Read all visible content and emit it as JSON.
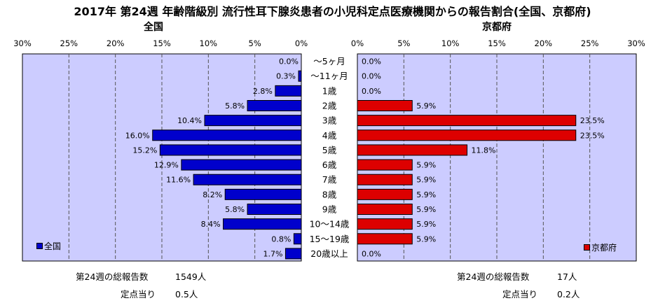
{
  "title": "2017年 第24週 年齢階級別 流行性耳下腺炎患者の小児科定点医療機関からの報告割合(全国、京都府)",
  "colors": {
    "plot_bg": "#ccccff",
    "national_bar": "#0000cc",
    "kyoto_bar": "#dd0000",
    "grid": "#555555"
  },
  "chart_data": {
    "type": "bar",
    "orientation": "horizontal-butterfly",
    "categories": [
      "～5ヶ月",
      "～11ヶ月",
      "1歳",
      "2歳",
      "3歳",
      "4歳",
      "5歳",
      "6歳",
      "7歳",
      "8歳",
      "9歳",
      "10～14歳",
      "15～19歳",
      "20歳以上"
    ],
    "x_ticks": [
      "0%",
      "5%",
      "10%",
      "15%",
      "20%",
      "25%",
      "30%"
    ],
    "xlim": [
      0,
      30
    ],
    "grid": true,
    "panels": [
      {
        "subtitle": "全国",
        "legend_label": "全国",
        "legend_position": "bottom-left",
        "values": [
          0.0,
          0.3,
          2.8,
          5.8,
          10.4,
          16.0,
          15.2,
          12.9,
          11.6,
          8.2,
          5.8,
          8.4,
          0.8,
          1.7
        ],
        "value_labels": [
          "0.0%",
          "0.3%",
          "2.8%",
          "5.8%",
          "10.4%",
          "16.0%",
          "15.2%",
          "12.9%",
          "11.6%",
          "8.2%",
          "5.8%",
          "8.4%",
          "0.8%",
          "1.7%"
        ],
        "total_label": "第24週の総報告数",
        "total_value": "1549人",
        "per_site_label": "定点当り",
        "per_site_value": "0.5人"
      },
      {
        "subtitle": "京都府",
        "legend_label": "京都府",
        "legend_position": "bottom-right",
        "values": [
          0.0,
          0.0,
          0.0,
          5.9,
          23.5,
          23.5,
          11.8,
          5.9,
          5.9,
          5.9,
          5.9,
          5.9,
          5.9,
          0.0
        ],
        "value_labels": [
          "0.0%",
          "0.0%",
          "0.0%",
          "5.9%",
          "23.5%",
          "23.5%",
          "11.8%",
          "5.9%",
          "5.9%",
          "5.9%",
          "5.9%",
          "5.9%",
          "5.9%",
          "0.0%"
        ],
        "total_label": "第24週の総報告数",
        "total_value": "17人",
        "per_site_label": "定点当り",
        "per_site_value": "0.2人"
      }
    ]
  }
}
